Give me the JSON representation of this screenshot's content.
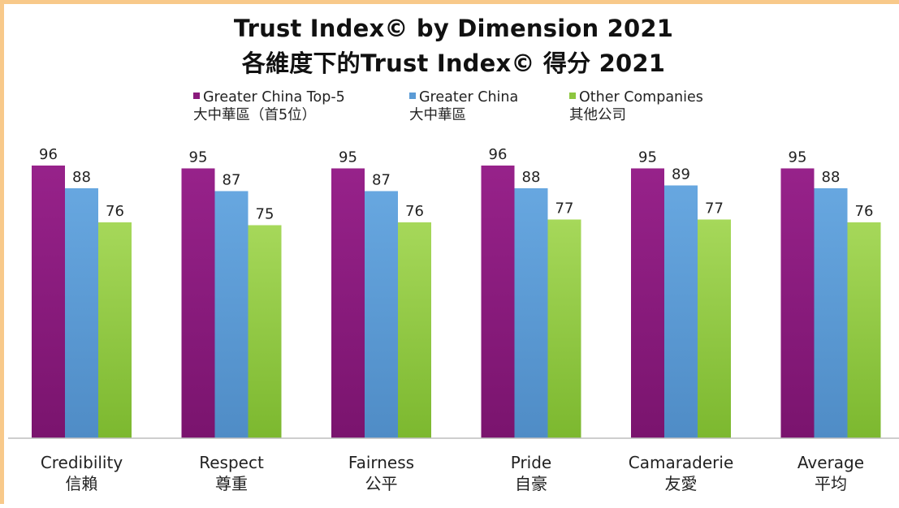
{
  "title": "Trust Index© by Dimension 2021",
  "title_zh": "各維度下的Trust Index© 得分 2021",
  "colors": {
    "frame": "#f8c98a",
    "series": [
      "#8a1a7c",
      "#5b9bd5",
      "#8dc63f"
    ]
  },
  "chart_data": {
    "type": "bar",
    "categories": [
      "Credibility",
      "Respect",
      "Fairness",
      "Pride",
      "Camaraderie",
      "Average"
    ],
    "categories_zh": [
      "信賴",
      "尊重",
      "公平",
      "自豪",
      "友愛",
      "平均"
    ],
    "series": [
      {
        "name": "Greater China Top-5",
        "name_zh": "大中華區（首5位）",
        "values": [
          96,
          95,
          95,
          96,
          95,
          95
        ]
      },
      {
        "name": "Greater China",
        "name_zh": "大中華區",
        "values": [
          88,
          87,
          87,
          88,
          89,
          88
        ]
      },
      {
        "name": "Other Companies",
        "name_zh": "其他公司",
        "values": [
          76,
          75,
          76,
          77,
          77,
          76
        ]
      }
    ],
    "legend_position": "top",
    "grid": false
  }
}
